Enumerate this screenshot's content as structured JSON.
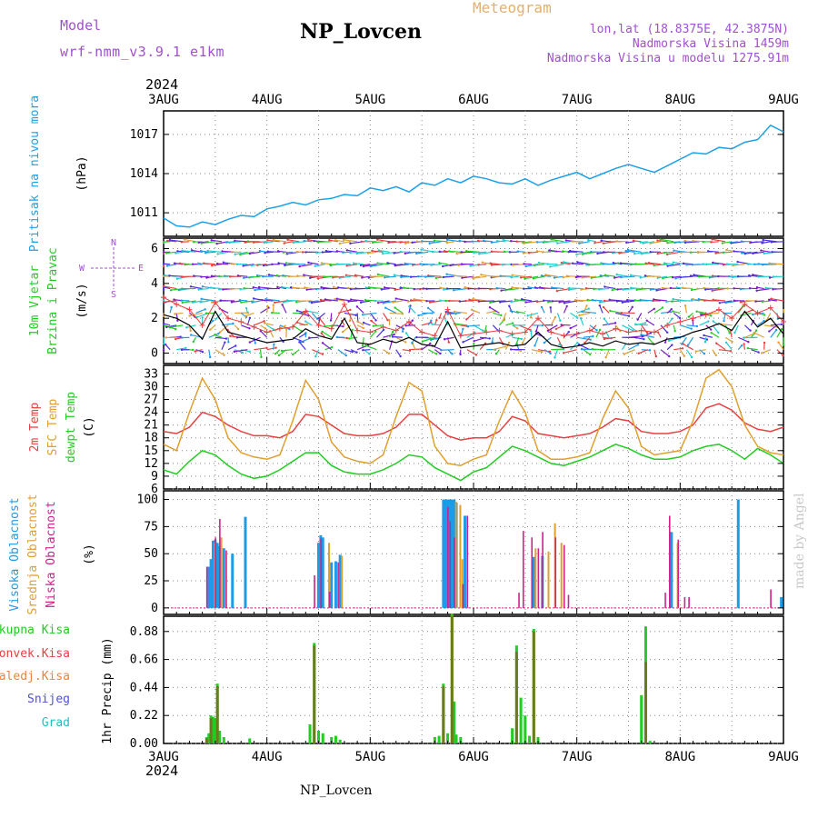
{
  "header": {
    "model_label": "Model",
    "model_name": "wrf-nmm_v3.9.1 e1km",
    "station": "NP_Lovcen",
    "meteogram_label": "Meteogram",
    "lonlat": "lon,lat (18.8375E, 42.3875N)",
    "elevation": "Nadmorska Visina 1459m",
    "model_elevation": "Nadmorska Visina u modelu 1275.91m",
    "year": "2024",
    "credit": "made by Angel",
    "footer_station": "NP_Lovcen"
  },
  "colors": {
    "pressure": "#1ea0e6",
    "temp2m": "#e84040",
    "sfc_temp": "#e0a030",
    "dewpoint": "#22cc22",
    "cloud_high": "#1e9be6",
    "cloud_mid": "#e0a030",
    "cloud_low": "#d0208c",
    "precip_total": "#22cc22",
    "precip_conv": "#e84040",
    "precip_frozen": "#f08040",
    "snow": "#5050e0",
    "hail": "#20c0c0",
    "wind_label": "#22cc22",
    "model_text": "#a050d0"
  },
  "chart_data": [
    {
      "type": "line",
      "name": "pressure",
      "ylabel_main": "Pritisak na nivou mora",
      "ylabel_unit": "(hPa)",
      "x_labels": [
        "3AUG",
        "4AUG",
        "5AUG",
        "6AUG",
        "7AUG",
        "8AUG",
        "9AUG"
      ],
      "yticks": [
        1011,
        1014,
        1017
      ],
      "ylim": [
        1009.2,
        1018.8
      ],
      "grid": true,
      "hours": [
        0,
        3,
        6,
        9,
        12,
        15,
        18,
        21,
        24,
        27,
        30,
        33,
        36,
        39,
        42,
        45,
        48,
        51,
        54,
        57,
        60,
        63,
        66,
        69,
        72,
        75,
        78,
        81,
        84,
        87,
        90,
        93,
        96,
        99,
        102,
        105,
        108,
        111,
        114,
        117,
        120,
        123,
        126,
        129,
        132,
        135,
        138,
        141,
        144
      ],
      "values": [
        1010.6,
        1010.0,
        1009.9,
        1010.3,
        1010.1,
        1010.5,
        1010.8,
        1010.7,
        1011.3,
        1011.5,
        1011.8,
        1011.6,
        1012.0,
        1012.1,
        1012.4,
        1012.3,
        1012.9,
        1012.7,
        1013.0,
        1012.6,
        1013.3,
        1013.1,
        1013.6,
        1013.3,
        1013.8,
        1013.6,
        1013.3,
        1013.2,
        1013.6,
        1013.1,
        1013.5,
        1013.8,
        1014.1,
        1013.6,
        1014.0,
        1014.4,
        1014.7,
        1014.4,
        1014.1,
        1014.6,
        1015.1,
        1015.6,
        1015.5,
        1016.0,
        1015.9,
        1016.4,
        1016.6,
        1017.7,
        1017.2
      ]
    },
    {
      "type": "line",
      "name": "wind",
      "ylabel_main": "10m Vjetar",
      "ylabel_sub": "Brzina i Pravac",
      "ylabel_unit": "(m/s)",
      "compass_n": "N",
      "compass_e": "E",
      "compass_w": "W",
      "compass_s": "S",
      "yticks": [
        0,
        2,
        4,
        6
      ],
      "ylim": [
        -0.6,
        6.6
      ],
      "grid": true,
      "hours": [
        0,
        3,
        6,
        9,
        12,
        15,
        18,
        21,
        24,
        27,
        30,
        33,
        36,
        39,
        42,
        45,
        48,
        51,
        54,
        57,
        60,
        63,
        66,
        69,
        72,
        75,
        78,
        81,
        84,
        87,
        90,
        93,
        96,
        99,
        102,
        105,
        108,
        111,
        114,
        117,
        120,
        123,
        126,
        129,
        132,
        135,
        138,
        141,
        144
      ],
      "speed_mean": [
        2.2,
        2.0,
        1.6,
        0.8,
        2.4,
        1.2,
        1.0,
        0.8,
        0.6,
        0.7,
        0.8,
        1.4,
        1.0,
        0.8,
        2.0,
        0.6,
        0.5,
        0.8,
        0.6,
        0.9,
        0.5,
        0.4,
        1.8,
        0.3,
        0.4,
        0.5,
        0.6,
        0.4,
        0.5,
        1.2,
        0.5,
        0.3,
        0.4,
        0.6,
        0.4,
        0.7,
        0.5,
        0.6,
        0.5,
        0.8,
        0.9,
        1.2,
        1.4,
        1.7,
        1.3,
        2.4,
        1.5,
        2.0,
        1.1
      ],
      "speed_gust": [
        3.2,
        2.8,
        2.5,
        1.6,
        2.9,
        2.0,
        1.8,
        1.5,
        1.2,
        1.4,
        1.5,
        2.4,
        1.6,
        1.4,
        2.8,
        1.3,
        1.2,
        1.5,
        1.3,
        1.8,
        1.2,
        1.0,
        2.5,
        1.0,
        1.1,
        1.2,
        1.3,
        1.1,
        1.2,
        2.0,
        1.2,
        1.0,
        1.1,
        1.3,
        1.1,
        1.4,
        1.2,
        1.3,
        1.2,
        1.6,
        1.8,
        2.0,
        2.2,
        2.5,
        2.0,
        2.8,
        2.3,
        2.6,
        1.8
      ]
    },
    {
      "type": "line",
      "name": "temperature",
      "ylabel_2m": "2m Temp",
      "ylabel_sfc": "SFC Temp",
      "ylabel_dew": "dewpt Temp",
      "ylabel_unit": "(C)",
      "yticks": [
        6,
        9,
        12,
        15,
        18,
        21,
        24,
        27,
        30,
        33
      ],
      "ylim": [
        6,
        35
      ],
      "grid": true,
      "hours": [
        0,
        3,
        6,
        9,
        12,
        15,
        18,
        21,
        24,
        27,
        30,
        33,
        36,
        39,
        42,
        45,
        48,
        51,
        54,
        57,
        60,
        63,
        66,
        69,
        72,
        75,
        78,
        81,
        84,
        87,
        90,
        93,
        96,
        99,
        102,
        105,
        108,
        111,
        114,
        117,
        120,
        123,
        126,
        129,
        132,
        135,
        138,
        141,
        144
      ],
      "series": [
        {
          "name": "2m Temp",
          "values": [
            19.5,
            19.0,
            20.5,
            24.0,
            23.0,
            21.0,
            19.5,
            18.5,
            18.5,
            18.0,
            19.5,
            23.5,
            23.0,
            21.0,
            19.0,
            18.5,
            18.5,
            19.0,
            20.5,
            23.5,
            23.5,
            21.0,
            18.5,
            17.5,
            18.0,
            18.0,
            19.5,
            23.0,
            22.0,
            19.0,
            18.5,
            18.0,
            18.5,
            19.0,
            20.5,
            22.5,
            22.0,
            19.5,
            19.0,
            19.0,
            19.5,
            21.0,
            25.0,
            26.0,
            24.5,
            21.5,
            20.0,
            19.5,
            20.5
          ]
        },
        {
          "name": "SFC Temp",
          "values": [
            16.5,
            15.0,
            24.0,
            32.0,
            27.0,
            18.0,
            14.5,
            13.5,
            13.0,
            14.0,
            22.0,
            31.5,
            27.0,
            17.0,
            13.5,
            12.5,
            12.0,
            14.0,
            23.0,
            31.0,
            29.0,
            16.0,
            12.0,
            11.5,
            13.0,
            14.0,
            22.0,
            29.0,
            24.0,
            15.0,
            13.0,
            13.0,
            13.5,
            14.5,
            22.5,
            29.0,
            25.0,
            16.0,
            14.0,
            14.5,
            15.0,
            22.0,
            32.0,
            34.0,
            30.0,
            21.0,
            16.0,
            14.5,
            14.0
          ]
        },
        {
          "name": "dewpt Temp",
          "values": [
            10.5,
            9.5,
            12.5,
            15.0,
            14.0,
            11.5,
            9.5,
            8.5,
            9.0,
            10.5,
            12.5,
            14.5,
            14.5,
            11.5,
            10.0,
            9.5,
            9.5,
            10.5,
            12.0,
            14.0,
            13.5,
            11.0,
            9.5,
            8.0,
            10.0,
            11.0,
            13.5,
            16.0,
            15.0,
            13.5,
            12.0,
            11.5,
            12.5,
            13.5,
            15.0,
            16.5,
            15.5,
            14.0,
            13.0,
            13.0,
            13.5,
            15.0,
            16.0,
            16.5,
            15.0,
            13.0,
            15.5,
            14.0,
            12.0
          ]
        }
      ]
    },
    {
      "type": "bar",
      "name": "clouds",
      "ylabel_high": "Visoka Oblacnost",
      "ylabel_mid": "Srednja Oblacnost",
      "ylabel_low": "Niska Oblacnost",
      "ylabel_unit": "(%)",
      "yticks": [
        0,
        25,
        50,
        75,
        100
      ],
      "ylim": [
        -6,
        108
      ],
      "grid": true,
      "high": [
        [
          10.5,
          38
        ],
        [
          11,
          45
        ],
        [
          11.5,
          62
        ],
        [
          12,
          63
        ],
        [
          12.5,
          60
        ],
        [
          13,
          57
        ],
        [
          14,
          55
        ],
        [
          16,
          50
        ],
        [
          19,
          84
        ],
        [
          36,
          60
        ],
        [
          36.5,
          67
        ],
        [
          37,
          65
        ],
        [
          39,
          42
        ],
        [
          40,
          43
        ],
        [
          41,
          49
        ],
        [
          65,
          100
        ],
        [
          65.5,
          100
        ],
        [
          66,
          100
        ],
        [
          66.5,
          100
        ],
        [
          67,
          100
        ],
        [
          67.5,
          100
        ],
        [
          68,
          97
        ],
        [
          70,
          85
        ],
        [
          86,
          47
        ],
        [
          88,
          48
        ],
        [
          133.5,
          100
        ],
        [
          118,
          70
        ],
        [
          143.5,
          10
        ]
      ],
      "mid": [
        [
          11.5,
          60
        ],
        [
          13,
          65
        ],
        [
          38,
          60
        ],
        [
          41,
          48
        ],
        [
          67.5,
          98
        ],
        [
          68.5,
          95
        ],
        [
          69,
          45
        ],
        [
          86,
          55
        ],
        [
          89,
          52
        ],
        [
          90.5,
          78
        ],
        [
          92,
          60
        ],
        [
          119,
          60
        ]
      ],
      "low": [
        [
          10,
          38
        ],
        [
          12,
          65
        ],
        [
          13,
          82
        ],
        [
          14.5,
          53
        ],
        [
          35,
          30
        ],
        [
          36.5,
          64
        ],
        [
          38.5,
          15
        ],
        [
          40.5,
          42
        ],
        [
          66,
          93
        ],
        [
          66.5,
          80
        ],
        [
          67.5,
          65
        ],
        [
          69.5,
          22
        ],
        [
          70.5,
          85
        ],
        [
          82.5,
          14
        ],
        [
          83.5,
          71
        ],
        [
          85.5,
          65
        ],
        [
          87,
          55
        ],
        [
          88,
          70
        ],
        [
          91,
          65
        ],
        [
          93,
          58
        ],
        [
          94,
          12
        ],
        [
          116.5,
          14
        ],
        [
          117.5,
          85
        ],
        [
          119.5,
          63
        ],
        [
          121,
          10
        ],
        [
          122,
          10
        ],
        [
          141,
          17
        ]
      ]
    },
    {
      "type": "bar",
      "name": "precip",
      "ylabel_total": "Ukupna Kisa",
      "ylabel_conv": "Konvek.Kisa",
      "ylabel_frozen": "Zaledj.Kisa",
      "ylabel_snow": "Snijeg",
      "ylabel_hail": "Grad",
      "ylabel_unit": "1hr Precip (mm)",
      "yticks": [
        0,
        0.22,
        0.44,
        0.66,
        0.88
      ],
      "ylim": [
        0,
        1.0
      ],
      "grid": true,
      "total": [
        [
          10,
          0.05
        ],
        [
          10.5,
          0.08
        ],
        [
          11,
          0.22
        ],
        [
          11.5,
          0.21
        ],
        [
          12,
          0.2
        ],
        [
          12.5,
          0.47
        ],
        [
          13,
          0.1
        ],
        [
          14,
          0.05
        ],
        [
          20,
          0.04
        ],
        [
          34,
          0.15
        ],
        [
          35,
          0.79
        ],
        [
          36,
          0.1
        ],
        [
          37,
          0.08
        ],
        [
          39,
          0.05
        ],
        [
          40,
          0.06
        ],
        [
          41,
          0.03
        ],
        [
          63,
          0.05
        ],
        [
          64,
          0.06
        ],
        [
          65,
          0.47
        ],
        [
          66,
          0.08
        ],
        [
          67,
          1.02
        ],
        [
          67.5,
          0.33
        ],
        [
          68,
          0.07
        ],
        [
          69,
          0.05
        ],
        [
          81,
          0.12
        ],
        [
          82,
          0.77
        ],
        [
          83,
          0.36
        ],
        [
          84,
          0.22
        ],
        [
          85,
          0.06
        ],
        [
          86,
          0.9
        ],
        [
          87,
          0.05
        ],
        [
          111,
          0.38
        ],
        [
          112,
          0.92
        ],
        [
          113,
          0.02
        ]
      ],
      "conv": [
        [
          10,
          0.04
        ],
        [
          11,
          0.2
        ],
        [
          12.5,
          0.45
        ],
        [
          35,
          0.77
        ],
        [
          65,
          0.45
        ],
        [
          67,
          1.0
        ],
        [
          82,
          0.72
        ],
        [
          86,
          0.88
        ],
        [
          112,
          0.64
        ]
      ]
    }
  ]
}
